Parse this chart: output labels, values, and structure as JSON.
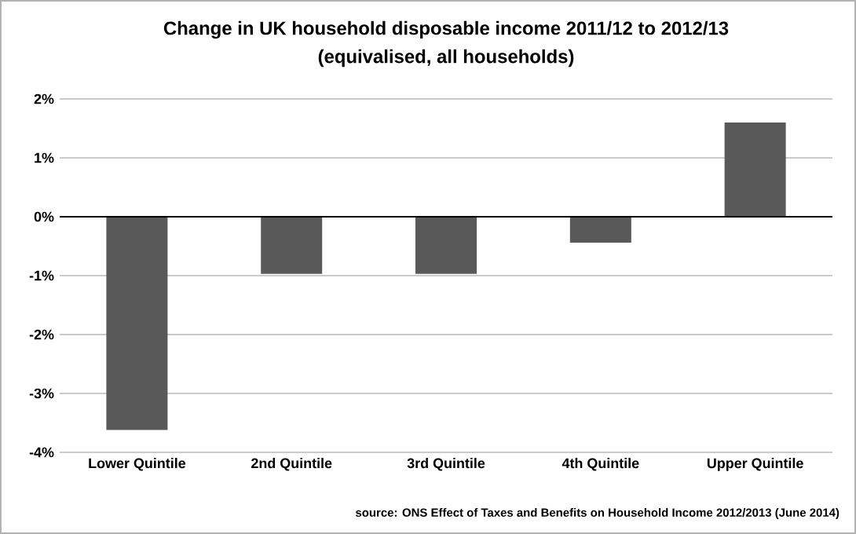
{
  "chart_data": {
    "type": "bar",
    "title": "Change in UK household disposable income 2011/12 to 2012/13",
    "subtitle": "(equivalised, all households)",
    "categories": [
      "Lower Quintile",
      "2nd Quintile",
      "3rd Quintile",
      "4th Quintile",
      "Upper Quintile"
    ],
    "values": [
      -3.62,
      -0.97,
      -0.97,
      -0.44,
      1.6
    ],
    "color": "#595959",
    "ylim": [
      -4,
      2
    ],
    "yticks": [
      {
        "value": -4,
        "label": "-4%"
      },
      {
        "value": -3,
        "label": "-3%"
      },
      {
        "value": -2,
        "label": "-2%"
      },
      {
        "value": -1,
        "label": "-1%"
      },
      {
        "value": 0,
        "label": "0%"
      },
      {
        "value": 1,
        "label": "1%"
      },
      {
        "value": 2,
        "label": "2%"
      }
    ],
    "grid": "y",
    "annotations": [
      "source: ONS Effect of Taxes and Benefits on Household Income 2012/2013 (June 2014)"
    ]
  }
}
